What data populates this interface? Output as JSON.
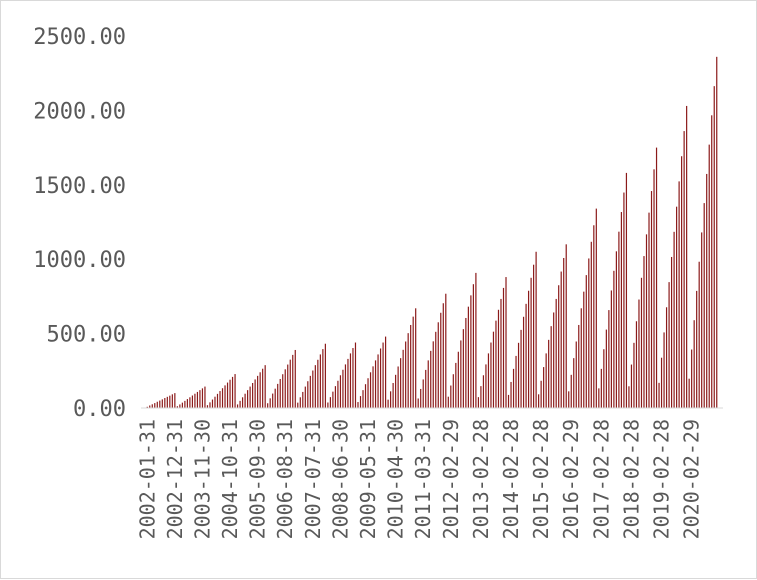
{
  "chart_data": {
    "type": "bar",
    "title": "",
    "xlabel": "",
    "ylabel": "",
    "ylim": [
      0,
      2500
    ],
    "yticks": [
      "0.00",
      "500.00",
      "1000.00",
      "1500.00",
      "2000.00",
      "2500.00"
    ],
    "grid": false,
    "legend": "none",
    "bar_color": "#8b1a1a",
    "x_tick_labels": [
      "2002-01-31",
      "2002-12-31",
      "2003-11-30",
      "2004-10-31",
      "2005-09-30",
      "2006-08-31",
      "2007-07-31",
      "2008-06-30",
      "2009-05-31",
      "2010-04-30",
      "2011-03-31",
      "2012-02-29",
      "2013-02-28",
      "2014-02-28",
      "2015-02-28",
      "2016-02-29",
      "2017-02-28",
      "2018-02-28",
      "2019-02-28",
      "2020-02-29"
    ],
    "start_month": "2002-01",
    "values": [
      8,
      17,
      25,
      33,
      42,
      50,
      58,
      67,
      75,
      83,
      92,
      100,
      12,
      24,
      36,
      48,
      60,
      72,
      84,
      96,
      108,
      120,
      132,
      144,
      19,
      38,
      57,
      76,
      95,
      114,
      133,
      152,
      171,
      190,
      209,
      228,
      24,
      48,
      72,
      96,
      120,
      144,
      168,
      192,
      216,
      240,
      264,
      288,
      32,
      65,
      97,
      130,
      162,
      195,
      227,
      260,
      292,
      325,
      357,
      390,
      36,
      72,
      108,
      144,
      180,
      216,
      252,
      288,
      324,
      360,
      396,
      432,
      37,
      73,
      110,
      147,
      183,
      220,
      257,
      293,
      330,
      367,
      403,
      440,
      40,
      80,
      120,
      160,
      200,
      240,
      280,
      320,
      360,
      400,
      440,
      480,
      56,
      112,
      168,
      223,
      279,
      335,
      391,
      447,
      503,
      558,
      614,
      670,
      64,
      128,
      192,
      256,
      320,
      384,
      448,
      512,
      576,
      640,
      704,
      768,
      76,
      151,
      227,
      303,
      378,
      454,
      530,
      605,
      681,
      757,
      832,
      908,
      73,
      147,
      220,
      293,
      367,
      440,
      513,
      587,
      660,
      733,
      807,
      880,
      88,
      175,
      263,
      350,
      438,
      525,
      613,
      700,
      788,
      875,
      963,
      1050,
      92,
      183,
      275,
      367,
      458,
      550,
      642,
      733,
      825,
      917,
      1008,
      1100,
      112,
      223,
      335,
      447,
      558,
      670,
      782,
      893,
      1005,
      1117,
      1228,
      1340,
      132,
      263,
      395,
      527,
      658,
      790,
      922,
      1053,
      1185,
      1317,
      1448,
      1580,
      146,
      292,
      438,
      583,
      729,
      875,
      1021,
      1167,
      1313,
      1458,
      1604,
      1750,
      169,
      338,
      508,
      677,
      846,
      1015,
      1184,
      1353,
      1523,
      1692,
      1861,
      2030,
      197,
      393,
      590,
      787,
      983,
      1180,
      1377,
      1573,
      1770,
      1967,
      2163,
      2360
    ]
  }
}
